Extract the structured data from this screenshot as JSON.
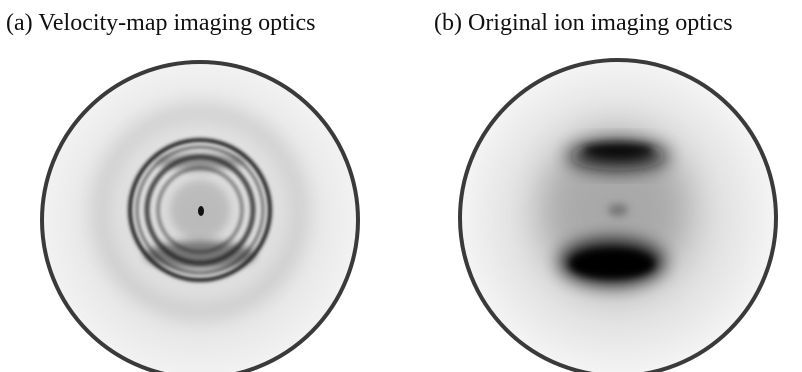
{
  "panels": [
    {
      "label": "(a) Velocity-map imaging optics"
    },
    {
      "label": "(b) Original ion imaging optics"
    }
  ]
}
